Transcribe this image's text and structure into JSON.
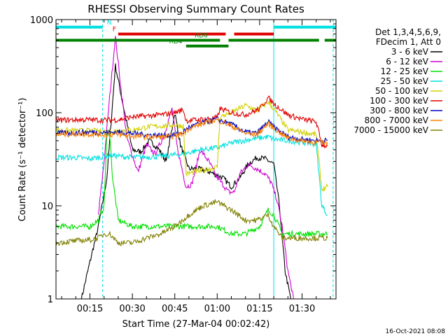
{
  "chart_data": {
    "type": "line",
    "title": "RHESSI Observing Summary Count Rates",
    "xlabel": "Start Time (27-Mar-04 00:02:42)",
    "ylabel": "Count Rate (s⁻¹ detector⁻¹)",
    "yscale": "log",
    "ylim": [
      1,
      1000
    ],
    "xlim_minutes": [
      3,
      102
    ],
    "x_ticks": [
      {
        "label": "00:15",
        "v": 15
      },
      {
        "label": "00:30",
        "v": 30
      },
      {
        "label": "00:45",
        "v": 45
      },
      {
        "label": "01:00",
        "v": 60
      },
      {
        "label": "01:15",
        "v": 75
      },
      {
        "label": "01:30",
        "v": 90
      }
    ],
    "y_ticks": [
      {
        "label": "1",
        "v": 1
      },
      {
        "label": "10",
        "v": 10
      },
      {
        "label": "100",
        "v": 100
      },
      {
        "label": "1000",
        "v": 1000
      }
    ],
    "legend": {
      "placement": "right",
      "header": [
        "Det 1,3,4,5,6,9,",
        "FDecim 1, Att 0"
      ]
    },
    "series": [
      {
        "name": "3 - 6 keV",
        "color": "#000000",
        "points": [
          [
            12,
            1
          ],
          [
            15,
            2.5
          ],
          [
            18,
            6
          ],
          [
            21,
            20
          ],
          [
            24,
            320
          ],
          [
            27,
            110
          ],
          [
            30,
            40
          ],
          [
            33,
            38
          ],
          [
            36,
            50
          ],
          [
            39,
            42
          ],
          [
            42,
            30
          ],
          [
            45,
            100
          ],
          [
            47,
            45
          ],
          [
            50,
            25
          ],
          [
            53,
            25
          ],
          [
            56,
            24
          ],
          [
            59,
            22
          ],
          [
            62,
            20
          ],
          [
            65,
            16
          ],
          [
            68,
            20
          ],
          [
            71,
            28
          ],
          [
            74,
            33
          ],
          [
            77,
            32
          ],
          [
            80,
            28
          ],
          [
            82,
            10
          ],
          [
            84,
            2
          ],
          [
            86,
            1
          ]
        ]
      },
      {
        "name": "6 - 12 keV",
        "color": "#d000d0",
        "points": [
          [
            18,
            8
          ],
          [
            20,
            30
          ],
          [
            22,
            150
          ],
          [
            24,
            650
          ],
          [
            26,
            180
          ],
          [
            28,
            55
          ],
          [
            30,
            35
          ],
          [
            32,
            23
          ],
          [
            35,
            45
          ],
          [
            38,
            36
          ],
          [
            41,
            55
          ],
          [
            44,
            110
          ],
          [
            46,
            40
          ],
          [
            49,
            16
          ],
          [
            51,
            17
          ],
          [
            54,
            40
          ],
          [
            57,
            30
          ],
          [
            60,
            20
          ],
          [
            62,
            17
          ],
          [
            64,
            14
          ],
          [
            66,
            14
          ],
          [
            68,
            22
          ],
          [
            71,
            28
          ],
          [
            74,
            25
          ],
          [
            77,
            22
          ],
          [
            79,
            18
          ],
          [
            81,
            12
          ],
          [
            83,
            6
          ],
          [
            85,
            2
          ],
          [
            87,
            1
          ]
        ]
      },
      {
        "name": "12 - 25 keV",
        "color": "#00e000",
        "points": [
          [
            3,
            6
          ],
          [
            10,
            6
          ],
          [
            15,
            6
          ],
          [
            18,
            7
          ],
          [
            20,
            10
          ],
          [
            21,
            60
          ],
          [
            22,
            60
          ],
          [
            23,
            20
          ],
          [
            25,
            7
          ],
          [
            30,
            6
          ],
          [
            40,
            6
          ],
          [
            50,
            6
          ],
          [
            60,
            6
          ],
          [
            65,
            5
          ],
          [
            70,
            5
          ],
          [
            75,
            6
          ],
          [
            78,
            9
          ],
          [
            80,
            8
          ],
          [
            83,
            5
          ],
          [
            90,
            5
          ],
          [
            99,
            5
          ]
        ]
      },
      {
        "name": "25 - 50 keV",
        "color": "#00e0e0",
        "points": [
          [
            3,
            33
          ],
          [
            10,
            33
          ],
          [
            15,
            32
          ],
          [
            18,
            33
          ],
          [
            20,
            34
          ],
          [
            22,
            35
          ],
          [
            30,
            33
          ],
          [
            40,
            34
          ],
          [
            48,
            36
          ],
          [
            54,
            40
          ],
          [
            60,
            42
          ],
          [
            66,
            48
          ],
          [
            72,
            52
          ],
          [
            78,
            55
          ],
          [
            80,
            52
          ],
          [
            85,
            50
          ],
          [
            90,
            48
          ],
          [
            95,
            46
          ],
          [
            97,
            10
          ],
          [
            99,
            8
          ]
        ]
      },
      {
        "name": "50 - 100 keV",
        "color": "#d0d000",
        "points": [
          [
            3,
            65
          ],
          [
            10,
            64
          ],
          [
            15,
            64
          ],
          [
            20,
            63
          ],
          [
            25,
            64
          ],
          [
            30,
            65
          ],
          [
            35,
            70
          ],
          [
            40,
            72
          ],
          [
            45,
            74
          ],
          [
            48,
            72
          ],
          [
            49,
            22
          ],
          [
            55,
            24
          ],
          [
            60,
            26
          ],
          [
            61,
            90
          ],
          [
            65,
            100
          ],
          [
            70,
            120
          ],
          [
            74,
            105
          ],
          [
            78,
            130
          ],
          [
            80,
            110
          ],
          [
            85,
            65
          ],
          [
            90,
            62
          ],
          [
            95,
            58
          ],
          [
            97,
            15
          ],
          [
            99,
            16
          ]
        ]
      },
      {
        "name": "100 - 300 keV",
        "color": "#e00000",
        "points": [
          [
            3,
            83
          ],
          [
            10,
            84
          ],
          [
            15,
            84
          ],
          [
            20,
            83
          ],
          [
            25,
            84
          ],
          [
            30,
            90
          ],
          [
            35,
            92
          ],
          [
            40,
            95
          ],
          [
            45,
            100
          ],
          [
            48,
            108
          ],
          [
            49,
            82
          ],
          [
            55,
            85
          ],
          [
            60,
            88
          ],
          [
            61,
            110
          ],
          [
            65,
            100
          ],
          [
            70,
            95
          ],
          [
            75,
            110
          ],
          [
            78,
            145
          ],
          [
            80,
            125
          ],
          [
            85,
            95
          ],
          [
            90,
            85
          ],
          [
            95,
            80
          ],
          [
            97,
            45
          ],
          [
            99,
            44
          ]
        ]
      },
      {
        "name": "300 - 800 keV",
        "color": "#0000c0",
        "points": [
          [
            3,
            60
          ],
          [
            10,
            61
          ],
          [
            15,
            62
          ],
          [
            20,
            61
          ],
          [
            25,
            62
          ],
          [
            30,
            60
          ],
          [
            35,
            58
          ],
          [
            40,
            57
          ],
          [
            45,
            58
          ],
          [
            48,
            62
          ],
          [
            50,
            70
          ],
          [
            55,
            78
          ],
          [
            60,
            85
          ],
          [
            65,
            75
          ],
          [
            70,
            62
          ],
          [
            74,
            60
          ],
          [
            78,
            80
          ],
          [
            80,
            70
          ],
          [
            85,
            55
          ],
          [
            90,
            52
          ],
          [
            95,
            50
          ],
          [
            99,
            50
          ]
        ]
      },
      {
        "name": "800 - 7000 keV",
        "color": "#ff8000",
        "points": [
          [
            3,
            58
          ],
          [
            10,
            59
          ],
          [
            15,
            59
          ],
          [
            20,
            58
          ],
          [
            25,
            58
          ],
          [
            30,
            56
          ],
          [
            35,
            55
          ],
          [
            40,
            55
          ],
          [
            45,
            56
          ],
          [
            48,
            60
          ],
          [
            50,
            68
          ],
          [
            55,
            76
          ],
          [
            60,
            84
          ],
          [
            65,
            72
          ],
          [
            70,
            60
          ],
          [
            74,
            58
          ],
          [
            78,
            76
          ],
          [
            80,
            68
          ],
          [
            85,
            53
          ],
          [
            90,
            50
          ],
          [
            95,
            48
          ],
          [
            99,
            48
          ]
        ]
      },
      {
        "name": "7000 - 15000 keV",
        "color": "#808000",
        "points": [
          [
            3,
            4
          ],
          [
            10,
            4.2
          ],
          [
            15,
            4.3
          ],
          [
            18,
            4.5
          ],
          [
            20,
            5
          ],
          [
            22,
            5
          ],
          [
            25,
            4
          ],
          [
            30,
            4
          ],
          [
            35,
            4.5
          ],
          [
            40,
            5
          ],
          [
            45,
            6
          ],
          [
            50,
            8
          ],
          [
            55,
            10
          ],
          [
            60,
            11
          ],
          [
            65,
            9
          ],
          [
            70,
            7
          ],
          [
            74,
            7
          ],
          [
            78,
            8
          ],
          [
            80,
            6
          ],
          [
            83,
            4.5
          ],
          [
            90,
            4.5
          ],
          [
            99,
            4.5
          ]
        ]
      }
    ],
    "state_bars": [
      {
        "label": "N",
        "color": "#00e0e0",
        "segments": [
          [
            3,
            19.5
          ],
          [
            80,
            102
          ]
        ],
        "level": 830
      },
      {
        "label": "F",
        "color": "#e00000",
        "segments": [
          [
            25,
            63
          ],
          [
            66,
            80
          ]
        ],
        "level": 700
      },
      {
        "label": "RD0",
        "color": "#008000",
        "segments": [
          [
            3,
            61
          ],
          [
            64,
            96
          ],
          [
            98,
            102
          ]
        ],
        "level": 600
      },
      {
        "label": "RD4",
        "color": "#008000",
        "segments": [
          [
            49,
            64
          ]
        ],
        "level": 520
      }
    ],
    "vlines": [
      {
        "v": 19.5,
        "color": "#00e0e0",
        "dash": true
      },
      {
        "v": 80,
        "color": "#00e0e0",
        "dash": false
      },
      {
        "v": 101,
        "color": "#00e0e0",
        "dash": true
      }
    ]
  },
  "footer": {
    "date": "16-Oct-2021 08:08"
  }
}
